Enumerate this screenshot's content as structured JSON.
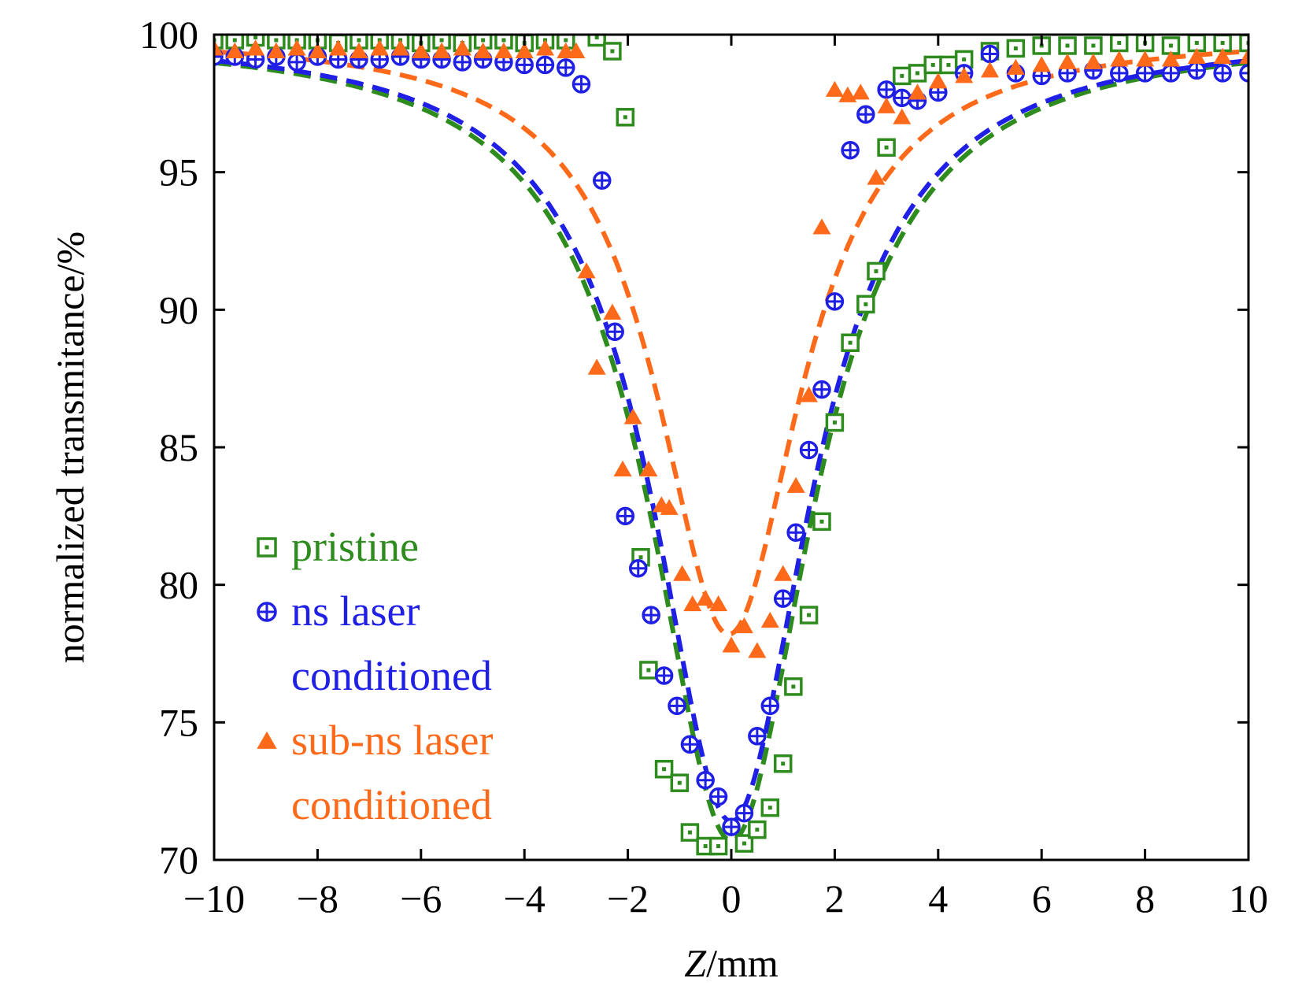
{
  "chart_data": {
    "type": "scatter",
    "xlabel_italic": "Z",
    "xlabel_rest": "/mm",
    "ylabel": "normalized transmitance/%",
    "xlim": [
      -10,
      10
    ],
    "ylim": [
      70,
      100
    ],
    "x_ticks": [
      -10,
      -8,
      -6,
      -4,
      -2,
      0,
      2,
      4,
      6,
      8,
      10
    ],
    "y_ticks": [
      70,
      75,
      80,
      85,
      90,
      95,
      100
    ],
    "x_tick_labels": [
      "−10",
      "−8",
      "−6",
      "−4",
      "−2",
      "0",
      "2",
      "4",
      "6",
      "8",
      "10"
    ],
    "y_tick_labels": [
      "70",
      "75",
      "80",
      "85",
      "90",
      "95",
      "100"
    ],
    "legend_position": "bottom-left",
    "series": [
      {
        "name": "pristine",
        "legend_lines": [
          "pristine"
        ],
        "color": "#2e8b1e",
        "marker": "square-dot",
        "fit": {
          "depth": 29.3,
          "z0": 1.9,
          "center": 0
        },
        "points": [
          [
            -10,
            99.8
          ],
          [
            -9.6,
            99.8
          ],
          [
            -9.2,
            99.9
          ],
          [
            -8.8,
            99.8
          ],
          [
            -8.4,
            99.8
          ],
          [
            -8,
            99.8
          ],
          [
            -7.6,
            99.7
          ],
          [
            -7.2,
            99.8
          ],
          [
            -6.8,
            99.8
          ],
          [
            -6.4,
            99.8
          ],
          [
            -6,
            99.7
          ],
          [
            -5.6,
            99.8
          ],
          [
            -5.2,
            99.7
          ],
          [
            -4.8,
            99.8
          ],
          [
            -4.4,
            99.8
          ],
          [
            -4,
            99.7
          ],
          [
            -3.6,
            99.8
          ],
          [
            -3.2,
            99.8
          ],
          [
            -2.6,
            99.9
          ],
          [
            -2.3,
            99.4
          ],
          [
            -2.05,
            97
          ],
          [
            -1.75,
            81
          ],
          [
            -1.6,
            76.9
          ],
          [
            -1.3,
            73.3
          ],
          [
            -1.0,
            72.8
          ],
          [
            -0.8,
            71
          ],
          [
            -0.5,
            70.5
          ],
          [
            -0.25,
            70.5
          ],
          [
            0.25,
            70.6
          ],
          [
            0.5,
            71.1
          ],
          [
            0.75,
            71.9
          ],
          [
            1.0,
            73.5
          ],
          [
            1.2,
            76.3
          ],
          [
            1.5,
            78.9
          ],
          [
            1.75,
            82.3
          ],
          [
            2.0,
            85.9
          ],
          [
            2.3,
            88.8
          ],
          [
            2.6,
            90.2
          ],
          [
            2.8,
            91.4
          ],
          [
            3.0,
            95.9
          ],
          [
            3.3,
            98.5
          ],
          [
            3.6,
            98.6
          ],
          [
            3.9,
            98.9
          ],
          [
            4.2,
            98.9
          ],
          [
            4.5,
            99.1
          ],
          [
            5.0,
            99.4
          ],
          [
            5.5,
            99.5
          ],
          [
            6.0,
            99.6
          ],
          [
            6.5,
            99.6
          ],
          [
            7.0,
            99.6
          ],
          [
            7.5,
            99.7
          ],
          [
            8.0,
            99.7
          ],
          [
            8.5,
            99.6
          ],
          [
            9.0,
            99.7
          ],
          [
            9.5,
            99.7
          ],
          [
            10,
            99.7
          ]
        ]
      },
      {
        "name": "ns laser conditioned",
        "legend_lines": [
          "ns laser",
          "conditioned"
        ],
        "color": "#1f1fe6",
        "marker": "circle-cross",
        "fit": {
          "depth": 28.6,
          "z0": 1.85,
          "center": 0
        },
        "points": [
          [
            -10,
            99.2
          ],
          [
            -9.6,
            99.2
          ],
          [
            -9.2,
            99.1
          ],
          [
            -8.8,
            99.2
          ],
          [
            -8.4,
            99.0
          ],
          [
            -8,
            99.2
          ],
          [
            -7.6,
            99.1
          ],
          [
            -7.2,
            99.1
          ],
          [
            -6.8,
            99.1
          ],
          [
            -6.4,
            99.2
          ],
          [
            -6,
            99.1
          ],
          [
            -5.6,
            99.1
          ],
          [
            -5.2,
            99.0
          ],
          [
            -4.8,
            99.1
          ],
          [
            -4.4,
            99.0
          ],
          [
            -4,
            98.9
          ],
          [
            -3.6,
            98.9
          ],
          [
            -3.2,
            98.8
          ],
          [
            -2.9,
            98.2
          ],
          [
            -2.5,
            94.7
          ],
          [
            -2.25,
            89.2
          ],
          [
            -2.05,
            82.5
          ],
          [
            -1.8,
            80.6
          ],
          [
            -1.55,
            78.9
          ],
          [
            -1.3,
            76.7
          ],
          [
            -1.05,
            75.6
          ],
          [
            -0.8,
            74.2
          ],
          [
            -0.5,
            72.9
          ],
          [
            -0.25,
            72.3
          ],
          [
            0.0,
            71.2
          ],
          [
            0.25,
            71.7
          ],
          [
            0.5,
            74.5
          ],
          [
            0.75,
            75.6
          ],
          [
            1.0,
            79.5
          ],
          [
            1.25,
            81.9
          ],
          [
            1.5,
            84.9
          ],
          [
            1.75,
            87.1
          ],
          [
            2.0,
            90.3
          ],
          [
            2.3,
            95.8
          ],
          [
            2.6,
            97.1
          ],
          [
            3.0,
            98.0
          ],
          [
            3.3,
            97.7
          ],
          [
            3.6,
            97.6
          ],
          [
            4.0,
            97.9
          ],
          [
            4.5,
            98.6
          ],
          [
            5.0,
            99.3
          ],
          [
            5.5,
            98.6
          ],
          [
            6.0,
            98.5
          ],
          [
            6.5,
            98.6
          ],
          [
            7.0,
            98.7
          ],
          [
            7.5,
            98.6
          ],
          [
            8.0,
            98.6
          ],
          [
            8.5,
            98.6
          ],
          [
            9.0,
            98.7
          ],
          [
            9.5,
            98.6
          ],
          [
            10,
            98.6
          ]
        ]
      },
      {
        "name": "sub-ns laser conditioned",
        "legend_lines": [
          "sub-ns laser",
          "conditioned"
        ],
        "color": "#ff6a1a",
        "marker": "triangle",
        "fit": {
          "depth": 21.8,
          "z0": 1.7,
          "center": -0.05
        },
        "points": [
          [
            -10,
            99.5
          ],
          [
            -9.6,
            99.4
          ],
          [
            -9.2,
            99.5
          ],
          [
            -8.8,
            99.4
          ],
          [
            -8.4,
            99.5
          ],
          [
            -8,
            99.4
          ],
          [
            -7.6,
            99.5
          ],
          [
            -7.2,
            99.4
          ],
          [
            -6.8,
            99.5
          ],
          [
            -6.4,
            99.5
          ],
          [
            -6,
            99.4
          ],
          [
            -5.6,
            99.4
          ],
          [
            -5.2,
            99.5
          ],
          [
            -4.8,
            99.4
          ],
          [
            -4.4,
            99.4
          ],
          [
            -4,
            99.4
          ],
          [
            -3.6,
            99.5
          ],
          [
            -3.2,
            99.4
          ],
          [
            -3.0,
            99.4
          ],
          [
            -2.8,
            91.4
          ],
          [
            -2.6,
            87.9
          ],
          [
            -2.3,
            89.9
          ],
          [
            -2.1,
            84.2
          ],
          [
            -1.9,
            86.1
          ],
          [
            -1.6,
            84.2
          ],
          [
            -1.35,
            82.9
          ],
          [
            -1.2,
            82.8
          ],
          [
            -0.95,
            80.4
          ],
          [
            -0.75,
            79.3
          ],
          [
            -0.5,
            79.5
          ],
          [
            -0.25,
            79.3
          ],
          [
            0.0,
            77.8
          ],
          [
            0.25,
            78.5
          ],
          [
            0.5,
            77.6
          ],
          [
            0.75,
            78.7
          ],
          [
            1.0,
            80.4
          ],
          [
            1.25,
            83.6
          ],
          [
            1.5,
            86.9
          ],
          [
            1.75,
            93.0
          ],
          [
            2.0,
            98.0
          ],
          [
            2.25,
            97.8
          ],
          [
            2.5,
            97.9
          ],
          [
            2.8,
            94.8
          ],
          [
            3.0,
            97.4
          ],
          [
            3.3,
            97.0
          ],
          [
            3.6,
            97.9
          ],
          [
            4.0,
            98.3
          ],
          [
            4.5,
            98.5
          ],
          [
            5.0,
            98.7
          ],
          [
            5.5,
            98.8
          ],
          [
            6.0,
            98.9
          ],
          [
            6.5,
            99.0
          ],
          [
            7.0,
            99.0
          ],
          [
            7.5,
            99.1
          ],
          [
            8.0,
            99.1
          ],
          [
            8.5,
            99.1
          ],
          [
            9.0,
            99.2
          ],
          [
            9.5,
            99.2
          ],
          [
            10,
            99.2
          ]
        ]
      }
    ]
  }
}
